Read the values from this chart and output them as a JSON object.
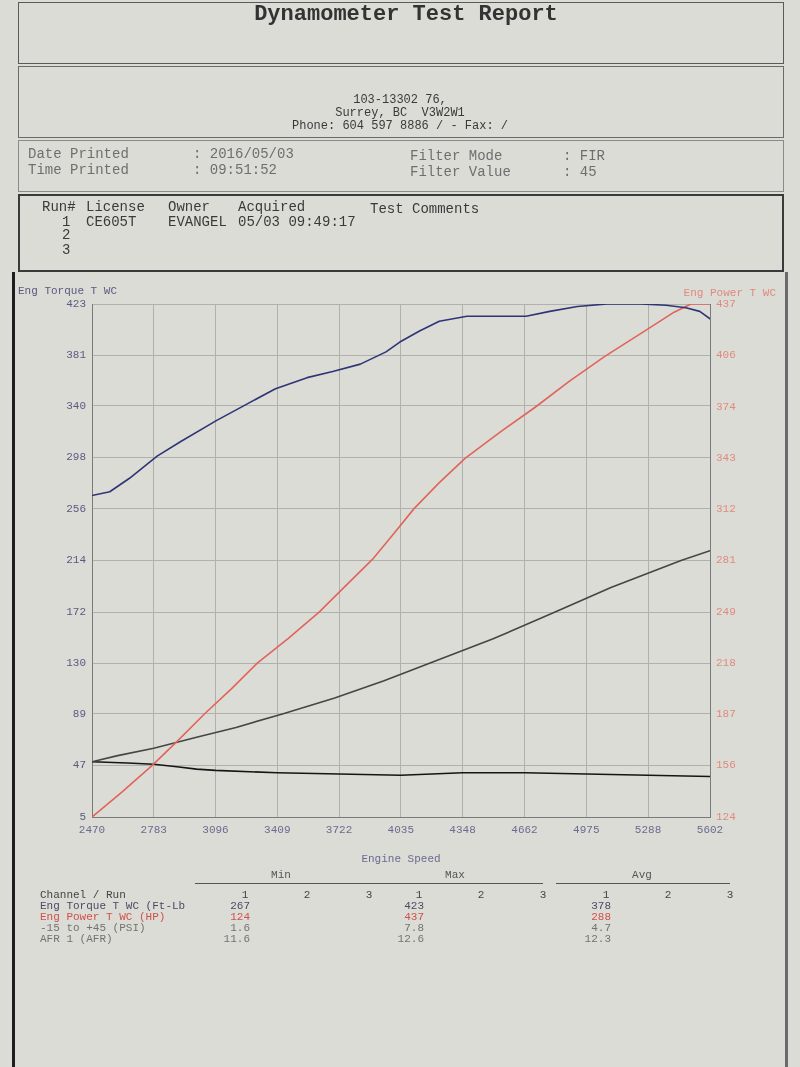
{
  "chart_data": [
    {
      "type": "other",
      "title": "Dynamometer Test Report",
      "annotations": [
        "103-13302 76,",
        "Surrey, BC  V3W2W1",
        "Phone: 604 597 8886 / - Fax: /",
        "Date Printed",
        ": 2016/05/03",
        "Time Printed",
        ": 09:51:52",
        "Filter Mode",
        ": FIR",
        "Filter Value",
        ": 45",
        "Run#",
        "License",
        "Owner",
        "Acquired",
        "Test Comments",
        "1",
        "CE605T",
        "EVANGEL",
        "05/03 09:49:17",
        "2",
        "3"
      ]
    },
    {
      "type": "line",
      "ylabel": "Eng Torque T WC",
      "y2label": "Eng Power T WC",
      "xlabel": "Engine Speed",
      "xlim": [
        2470,
        5602
      ],
      "xticks": [
        2470,
        2783,
        3096,
        3409,
        3722,
        4035,
        4348,
        4662,
        4975,
        5288,
        5602
      ],
      "ylim": [
        5,
        423
      ],
      "yticks": [
        5,
        47,
        89,
        130,
        172,
        214,
        256,
        298,
        340,
        381,
        423
      ],
      "y2lim": [
        124,
        437
      ],
      "y2ticks": [
        124,
        {
          "value": 155.5,
          "label": "156"
        },
        {
          "value": 186.6,
          "label": "187"
        },
        {
          "value": 217.9,
          "label": "218"
        },
        {
          "value": 249.2,
          "label": "249"
        },
        {
          "value": 280.5,
          "label": "281"
        },
        {
          "value": 311.8,
          "label": "312"
        },
        {
          "value": 343.1,
          "label": "343"
        },
        {
          "value": 374.4,
          "label": "374"
        },
        {
          "value": 405.7,
          "label": "406"
        },
        437
      ],
      "grid": true,
      "series": [
        {
          "color": "#2e3575",
          "x": [
            2470,
            2560,
            2660,
            2800,
            2920,
            3100,
            3250,
            3400,
            3560,
            3690,
            3830,
            3960,
            4030,
            4130,
            4230,
            4370,
            4540,
            4670,
            4790,
            4930,
            5080,
            5250,
            5380,
            5480,
            5550,
            5602
          ],
          "values": [
            267,
            270,
            281,
            299,
            311,
            328,
            341,
            354,
            363,
            368,
            374,
            384,
            392,
            401,
            409,
            413,
            413,
            413,
            417,
            421,
            423,
            423,
            422,
            420,
            417,
            411
          ]
        },
        {
          "color": "#e0645a",
          "axis": "y2",
          "x": [
            2470,
            2620,
            2771,
            2900,
            3041,
            3175,
            3309,
            3465,
            3621,
            3755,
            3890,
            4000,
            4101,
            4230,
            4362,
            4540,
            4716,
            4890,
            5069,
            5290,
            5420,
            5505,
            5602
          ],
          "values": [
            124,
            139,
            155,
            170,
            187,
            202,
            218,
            233,
            249,
            265,
            281,
            297,
            312,
            328,
            343,
            359,
            374,
            390,
            405,
            422,
            432,
            437,
            437
          ]
        },
        {
          "color": "#454545",
          "x": [
            2470,
            2600,
            2783,
            3000,
            3200,
            3435,
            3700,
            3950,
            4177,
            4500,
            4817,
            5100,
            5455,
            5602
          ],
          "values": [
            50,
            55,
            61,
            70,
            78,
            89,
            102,
            116,
            130,
            150,
            172,
            192,
            214,
            222
          ]
        },
        {
          "color": "#151515",
          "x": [
            2470,
            2650,
            2783,
            2900,
            3000,
            3096,
            3409,
            3722,
            4035,
            4348,
            4662,
            4975,
            5288,
            5602
          ],
          "values": [
            50,
            49,
            48,
            46,
            44,
            43,
            41,
            40,
            39,
            41,
            41,
            40,
            39,
            38
          ]
        }
      ]
    },
    {
      "type": "other",
      "legend_title": "Channel / Run",
      "annotations": [
        "Min",
        "Max",
        "Avg"
      ],
      "categories": [
        "1",
        "2",
        "3",
        "1",
        "2",
        "3",
        "1",
        "2",
        "3"
      ],
      "data_labels": true,
      "series": [
        {
          "name": "Eng Torque T WC (Ft-Lb",
          "color": "#4a4a66",
          "values": [
            267,
            null,
            null,
            423,
            null,
            null,
            378,
            null,
            null
          ]
        },
        {
          "name": "Eng Power T WC (HP)",
          "color": "#d0504a",
          "values": [
            124,
            null,
            null,
            437,
            null,
            null,
            288,
            null,
            null
          ]
        },
        {
          "name": "-15 to +45 (PSI)",
          "color": "#727272",
          "values": [
            1.6,
            null,
            null,
            7.8,
            null,
            null,
            4.7,
            null,
            null
          ]
        },
        {
          "name": "AFR 1 (AFR)",
          "color": "#727272",
          "values": [
            11.6,
            null,
            null,
            12.6,
            null,
            null,
            12.3,
            null,
            null
          ]
        }
      ]
    }
  ]
}
